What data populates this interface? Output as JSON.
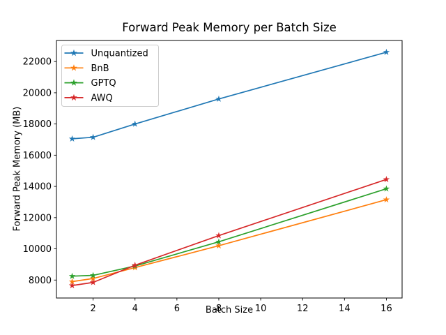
{
  "chart_data": {
    "type": "line",
    "title": "Forward Peak Memory per Batch Size",
    "xlabel": "Batch Size",
    "ylabel": "Forward Peak Memory (MB)",
    "x": [
      1,
      2,
      4,
      8,
      16
    ],
    "series": [
      {
        "name": "Unquantized",
        "color": "#1f77b4",
        "values": [
          17050,
          17150,
          18000,
          19600,
          22600
        ]
      },
      {
        "name": "BnB",
        "color": "#ff7f0e",
        "values": [
          7900,
          8100,
          8800,
          10200,
          13150
        ]
      },
      {
        "name": "GPTQ",
        "color": "#2ca02c",
        "values": [
          8250,
          8300,
          8900,
          10450,
          13850
        ]
      },
      {
        "name": "AWQ",
        "color": "#d62728",
        "values": [
          7650,
          7850,
          8950,
          10850,
          14450
        ]
      }
    ],
    "marker": "star",
    "xticks": [
      2,
      4,
      6,
      8,
      10,
      12,
      14,
      16
    ],
    "yticks": [
      8000,
      10000,
      12000,
      14000,
      16000,
      18000,
      20000,
      22000
    ],
    "xlim": [
      0.25,
      16.75
    ],
    "ylim": [
      6850,
      23350
    ],
    "grid": false,
    "legend_position": "upper left",
    "colors": {
      "spine": "#000000",
      "tick_text": "#000000",
      "legend_border": "#cccccc",
      "background": "#ffffff"
    }
  }
}
